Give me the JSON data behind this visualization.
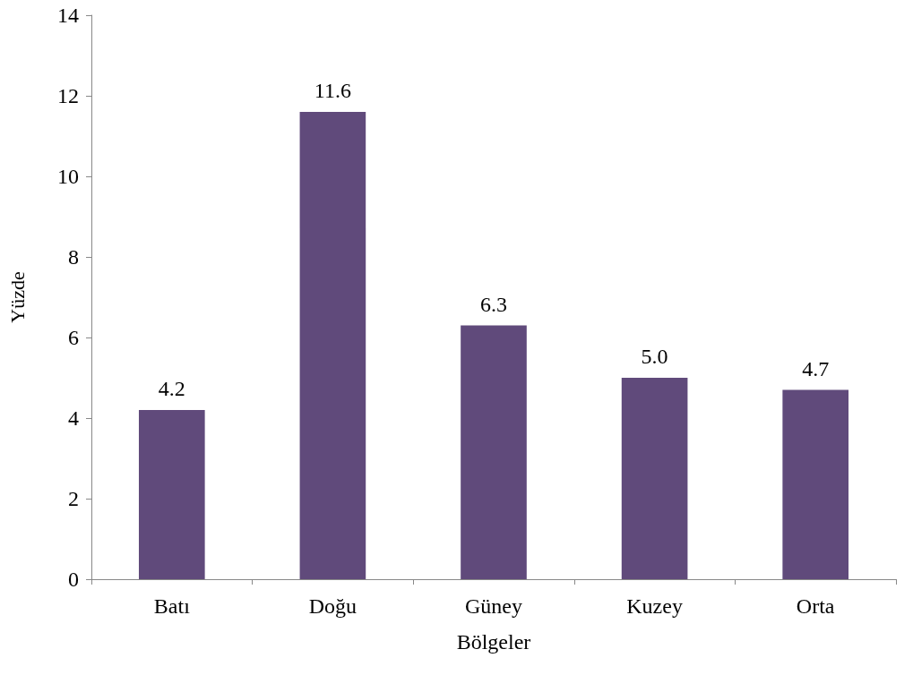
{
  "chart_data": {
    "type": "bar",
    "xlabel": "Bölgeler",
    "ylabel": "Yüzde",
    "categories": [
      "Batı",
      "Doğu",
      "Güney",
      "Kuzey",
      "Orta"
    ],
    "values": [
      4.2,
      11.6,
      6.3,
      5.0,
      4.7
    ],
    "value_labels": [
      "4.2",
      "11.6",
      "6.3",
      "5.0",
      "4.7"
    ],
    "color": "#604a7b",
    "ylim": [
      0,
      14
    ],
    "yticks": [
      0,
      2,
      4,
      6,
      8,
      10,
      12,
      14
    ],
    "grid": false
  }
}
